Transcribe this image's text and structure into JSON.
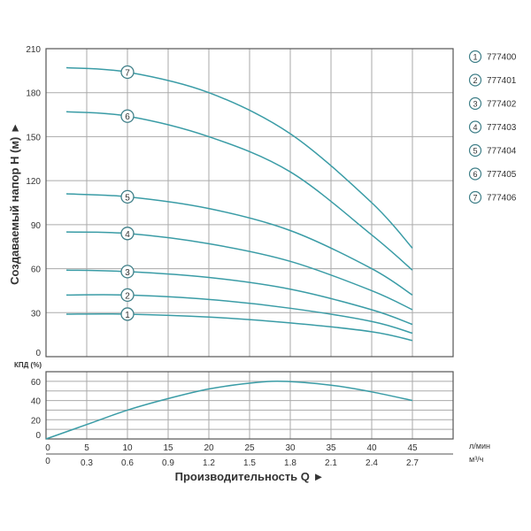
{
  "colors": {
    "curve": "#3a9ca6",
    "marker": "#3f7f88",
    "grid": "#aaaaaa",
    "frame": "#555555"
  },
  "chart_data": [
    {
      "type": "line",
      "ylabel": "Создаваемый напор H (м) ►",
      "xlim": [
        0,
        50
      ],
      "ylim": [
        0,
        210
      ],
      "yticks": [
        0,
        30,
        60,
        90,
        120,
        150,
        180,
        210
      ],
      "grid": true,
      "legend_placement": "right",
      "series": [
        {
          "name": "777400",
          "label": "1",
          "x": [
            2.5,
            10,
            20,
            30,
            40,
            45
          ],
          "y": [
            29,
            29,
            27,
            23,
            17,
            11
          ]
        },
        {
          "name": "777401",
          "label": "2",
          "x": [
            2.5,
            10,
            20,
            30,
            40,
            45
          ],
          "y": [
            42,
            42,
            39,
            33,
            24,
            16
          ]
        },
        {
          "name": "777402",
          "label": "3",
          "x": [
            2.5,
            10,
            20,
            30,
            40,
            45
          ],
          "y": [
            59,
            58,
            54,
            46,
            32,
            22
          ]
        },
        {
          "name": "777403",
          "label": "4",
          "x": [
            2.5,
            10,
            20,
            30,
            40,
            45
          ],
          "y": [
            85,
            84,
            77,
            65,
            45,
            32
          ]
        },
        {
          "name": "777404",
          "label": "5",
          "x": [
            2.5,
            10,
            20,
            30,
            40,
            45
          ],
          "y": [
            111,
            109,
            101,
            86,
            60,
            42
          ]
        },
        {
          "name": "777405",
          "label": "6",
          "x": [
            2.5,
            10,
            20,
            30,
            40,
            45
          ],
          "y": [
            167,
            164,
            150,
            126,
            83,
            59
          ]
        },
        {
          "name": "777406",
          "label": "7",
          "x": [
            2.5,
            10,
            20,
            30,
            40,
            45
          ],
          "y": [
            197,
            194,
            180,
            152,
            105,
            74
          ]
        }
      ]
    },
    {
      "type": "line",
      "ylabel": "КПД (%)",
      "xlim": [
        0,
        50
      ],
      "ylim": [
        0,
        70
      ],
      "yticks": [
        0,
        20,
        40,
        60
      ],
      "grid": true,
      "series": [
        {
          "x": [
            0,
            5,
            10,
            15,
            20,
            25,
            29,
            35,
            40,
            45
          ],
          "y": [
            0,
            15,
            30,
            42,
            52,
            58,
            60,
            56,
            49,
            40
          ]
        }
      ],
      "xticks_lmin": [
        0,
        5,
        10,
        15,
        20,
        25,
        30,
        35,
        40,
        45
      ],
      "xticks_m3h": [
        "0",
        "0.3",
        "0.6",
        "0.9",
        "1.2",
        "1.5",
        "1.8",
        "2.1",
        "2.4",
        "2.7"
      ],
      "xunit_lmin": "л/мин",
      "xunit_m3h": "м³/ч",
      "xlabel": "Производительность Q ►"
    }
  ]
}
